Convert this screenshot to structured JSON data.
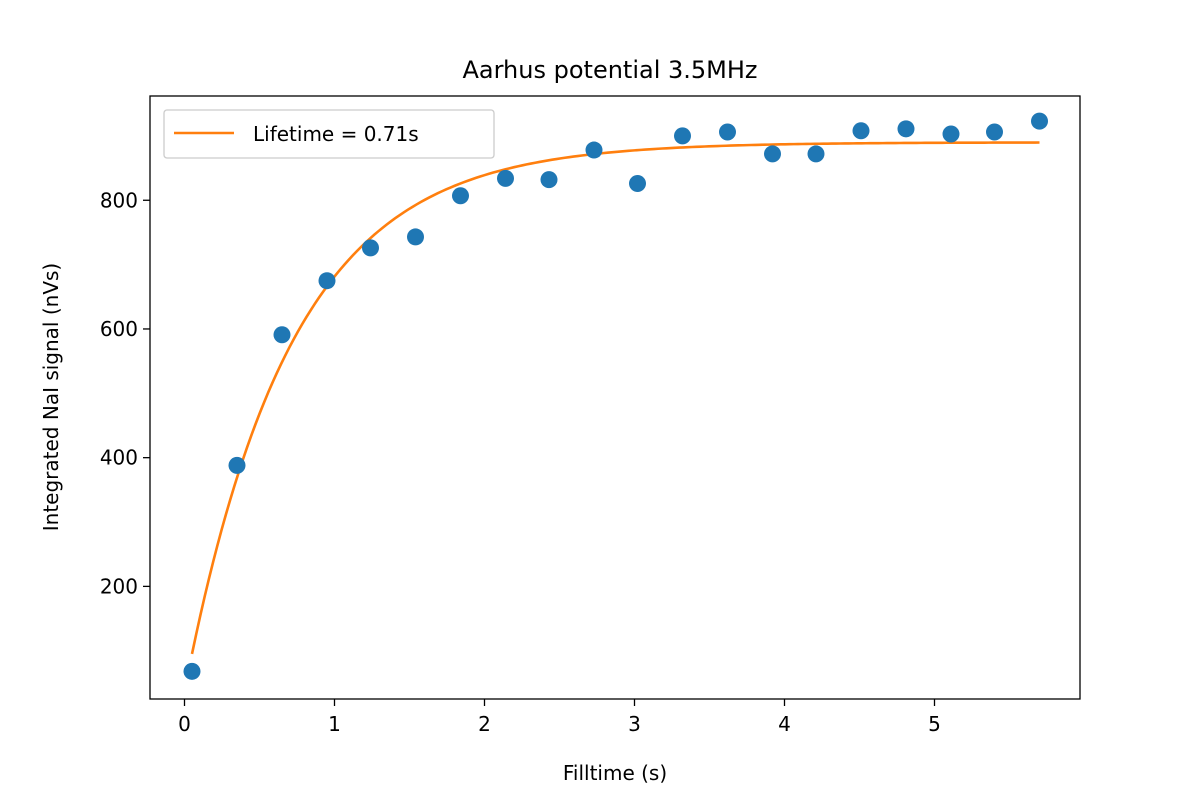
{
  "chart_data": {
    "type": "scatter",
    "title": "Aarhus potential 3.5MHz",
    "xlabel": "Filltime (s)",
    "ylabel": "Integrated NaI signal (nVs)",
    "xlim": [
      -0.23,
      5.97
    ],
    "ylim": [
      25,
      962
    ],
    "xticks": [
      0,
      1,
      2,
      3,
      4,
      5
    ],
    "yticks": [
      200,
      400,
      600,
      800
    ],
    "grid": false,
    "legend_position": "upper-left",
    "series": [
      {
        "type": "scatter",
        "color": "#1f77b4",
        "x": [
          0.05,
          0.35,
          0.65,
          0.95,
          1.24,
          1.54,
          1.84,
          2.14,
          2.43,
          2.73,
          3.02,
          3.32,
          3.62,
          3.92,
          4.21,
          4.51,
          4.81,
          5.11,
          5.4,
          5.7
        ],
        "y": [
          68,
          388,
          591,
          675,
          726,
          743,
          807,
          834,
          832,
          878,
          826,
          900,
          906,
          872,
          872,
          908,
          911,
          903,
          906,
          923
        ]
      },
      {
        "type": "line",
        "name": "Lifetime = 0.71s",
        "color": "#ff7f0e",
        "model": {
          "amplitude": 890,
          "start": 0.05,
          "offset_at_start": 95,
          "lifetime": 0.71,
          "x_end": 5.7
        }
      }
    ]
  }
}
